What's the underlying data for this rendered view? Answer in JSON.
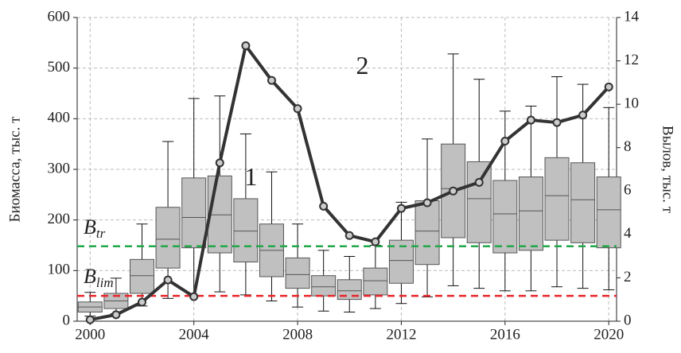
{
  "chart_data": {
    "type": "box-line",
    "ylabel": "Биомасса, тыс. т",
    "y2label": "Вылов, тыс. т",
    "x": [
      2000,
      2001,
      2002,
      2003,
      2004,
      2005,
      2006,
      2007,
      2008,
      2009,
      2010,
      2011,
      2012,
      2013,
      2014,
      2015,
      2016,
      2017,
      2018,
      2019,
      2020
    ],
    "xlim": [
      1999.5,
      2020.3
    ],
    "xticks": [
      2000,
      2004,
      2008,
      2012,
      2016,
      2020
    ],
    "ylim": [
      0,
      600
    ],
    "yticks": [
      0,
      100,
      200,
      300,
      400,
      500,
      600
    ],
    "y2lim": [
      0,
      14
    ],
    "y2ticks": [
      0,
      2,
      4,
      6,
      8,
      10,
      12,
      14
    ],
    "grid": true,
    "boxes": {
      "color": "#c0c0c0",
      "min": [
        10,
        15,
        30,
        45,
        50,
        58,
        52,
        40,
        28,
        20,
        18,
        25,
        35,
        48,
        70,
        65,
        60,
        60,
        68,
        65,
        62
      ],
      "q1": [
        18,
        25,
        55,
        105,
        145,
        135,
        117,
        88,
        65,
        50,
        43,
        52,
        75,
        112,
        165,
        155,
        135,
        140,
        160,
        155,
        145
      ],
      "median": [
        28,
        40,
        90,
        162,
        205,
        210,
        178,
        140,
        92,
        68,
        60,
        80,
        120,
        178,
        262,
        242,
        212,
        218,
        248,
        240,
        220
      ],
      "q3": [
        38,
        55,
        122,
        225,
        283,
        287,
        242,
        192,
        125,
        90,
        82,
        105,
        160,
        238,
        350,
        315,
        278,
        285,
        323,
        313,
        285
      ],
      "max": [
        57,
        85,
        192,
        355,
        440,
        445,
        370,
        295,
        192,
        140,
        128,
        150,
        235,
        360,
        528,
        478,
        415,
        425,
        483,
        468,
        422
      ]
    },
    "series": [
      {
        "color": "#333333",
        "axis": "y2",
        "values": [
          0.07,
          0.3,
          0.88,
          1.9,
          1.13,
          7.3,
          12.7,
          11.1,
          9.8,
          5.3,
          3.95,
          3.66,
          5.2,
          5.46,
          6.0,
          6.4,
          8.3,
          9.27,
          9.16,
          9.5,
          10.8
        ]
      }
    ],
    "ref_lines": [
      {
        "value": 148,
        "color": "#22a84a",
        "label": {
          "text": "B",
          "sub": "tr"
        }
      },
      {
        "value": 50,
        "color": "#e8262a",
        "label": {
          "text": "B",
          "sub": "lim"
        }
      }
    ],
    "annotations": [
      {
        "text": "1",
        "x": 2006.2,
        "y": 280
      },
      {
        "text": "2",
        "x": 2010.5,
        "y": 500
      }
    ]
  }
}
